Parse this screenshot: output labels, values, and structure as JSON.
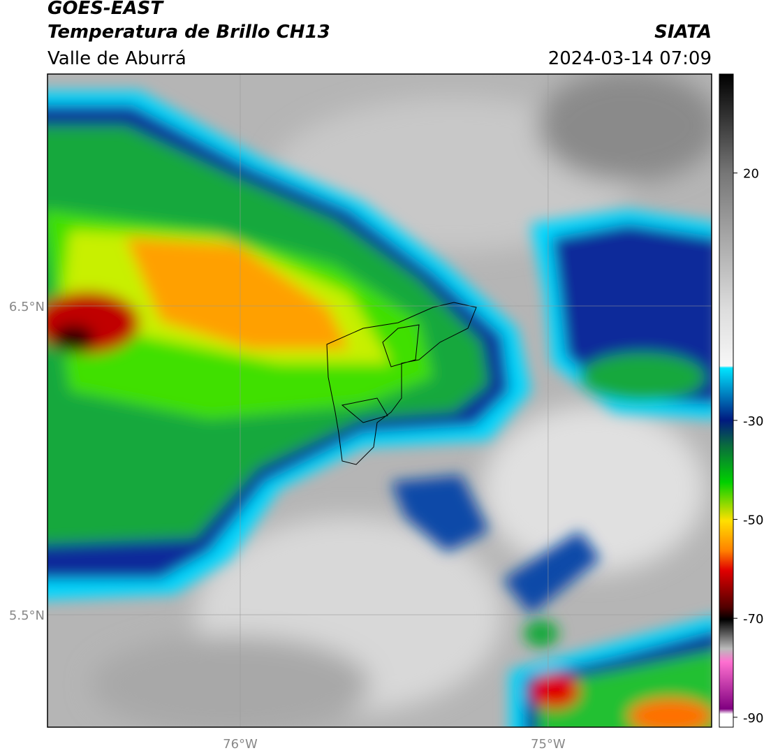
{
  "header": {
    "satellite": "GOES-EAST",
    "product": "Temperatura de Brillo CH13",
    "region": "Valle de Aburrá",
    "agency": "SIATA",
    "datetime": "2024-03-14 07:09"
  },
  "map": {
    "lon_lim": [
      -76.626,
      -74.469
    ],
    "lat_lim": [
      5.136,
      7.251
    ],
    "lon_ticks": [
      {
        "value": -76,
        "label": "76°W"
      },
      {
        "value": -75,
        "label": "75°W"
      }
    ],
    "lat_ticks": [
      {
        "value": 6.5,
        "label": "6.5°N"
      },
      {
        "value": 5.5,
        "label": "5.5°N"
      }
    ]
  },
  "colorbar": {
    "lim": [
      -92,
      40
    ],
    "ticks": [
      20,
      -30,
      -50,
      -70,
      -90
    ]
  }
}
